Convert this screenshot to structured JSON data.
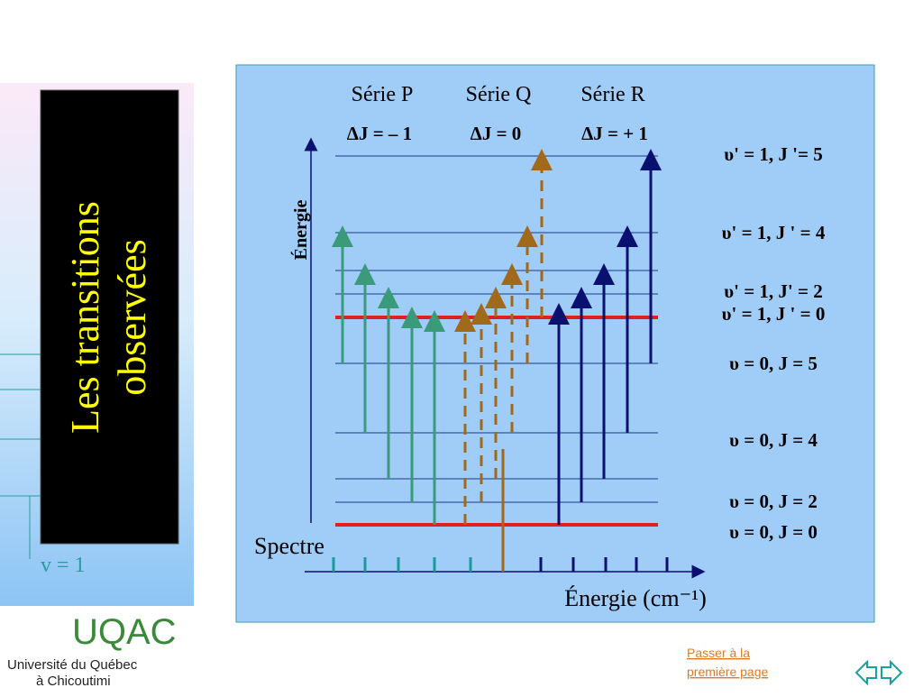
{
  "title": [
    "Les transitions",
    "observées"
  ],
  "diagram": {
    "series": [
      {
        "name": "Série P",
        "rule": "ΔJ = – 1"
      },
      {
        "name": "Série Q",
        "rule": "ΔJ = 0"
      },
      {
        "name": "Série R",
        "rule": "ΔJ = + 1"
      }
    ],
    "levels": [
      "υ' = 1, J '= 5",
      "υ' = 1, J ' = 4",
      "υ' = 1, J' = 2",
      "υ' = 1, J ' = 0",
      "υ = 0, J = 5",
      "υ = 0, J = 4",
      "υ = 0, J = 2",
      "υ = 0, J = 0"
    ],
    "energy_axis": "Énergie",
    "spectrum": "Spectre",
    "spectrum_axis": "Énergie (cm⁻¹)"
  },
  "side_label": "v = 1",
  "logo": {
    "name": "UQAC",
    "line1": "Université du Québec",
    "line2": "à Chicoutimi"
  },
  "nav": {
    "link": [
      "Passer à la",
      "première page"
    ]
  }
}
